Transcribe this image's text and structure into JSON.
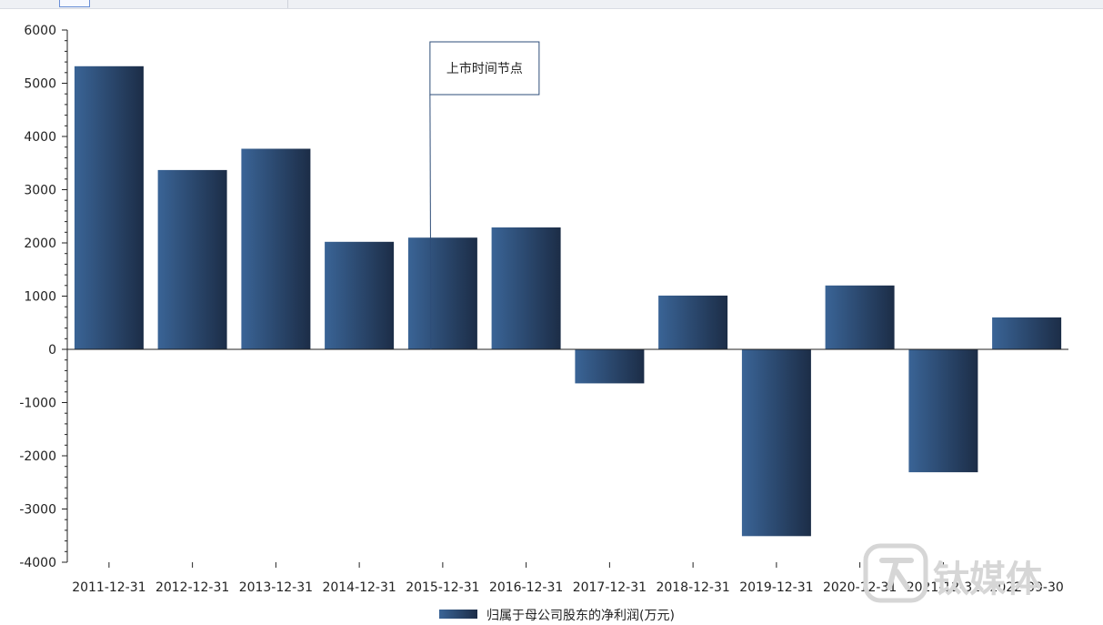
{
  "chart_data": {
    "type": "bar",
    "title": "",
    "xlabel": "",
    "ylabel": "",
    "categories": [
      "2011-12-31",
      "2012-12-31",
      "2013-12-31",
      "2014-12-31",
      "2015-12-31",
      "2016-12-31",
      "2017-12-31",
      "2018-12-31",
      "2019-12-31",
      "2020-12-31",
      "2021-12-31",
      "2022-09-30"
    ],
    "series": [
      {
        "name": "归属于母公司股东的净利润(万元)",
        "values": [
          5320,
          3370,
          3770,
          2020,
          2100,
          2290,
          -640,
          1010,
          -3510,
          1200,
          -2310,
          600
        ]
      }
    ],
    "ylim": [
      -4000,
      6000
    ],
    "yticks": [
      6000,
      5000,
      4000,
      3000,
      2000,
      1000,
      0,
      -1000,
      -2000,
      -3000,
      -4000
    ],
    "grid": false,
    "legend_position": "bottom-center",
    "annotation": {
      "text": "上市时间节点",
      "category": "2015-12-31"
    },
    "colors": {
      "bar_light": "#3a6496",
      "bar_dark": "#1c2d47",
      "annotation_border": "#2e4d78",
      "axis": "#222222"
    }
  },
  "watermark": {
    "text": "钛媒体"
  }
}
